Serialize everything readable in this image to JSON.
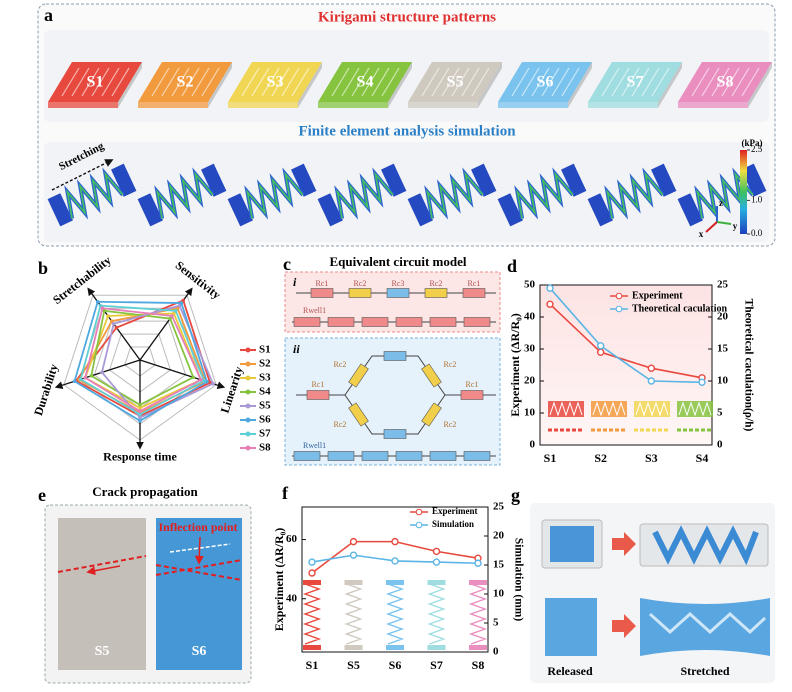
{
  "panel_a": {
    "label": "a",
    "title": "Kirigami structure patterns",
    "patterns": [
      {
        "label": "S1",
        "color": "#e8493f"
      },
      {
        "label": "S2",
        "color": "#f29a3e"
      },
      {
        "label": "S3",
        "color": "#f1d654"
      },
      {
        "label": "S4",
        "color": "#86c440"
      },
      {
        "label": "S5",
        "color": "#cfc9c0"
      },
      {
        "label": "S6",
        "color": "#79c3ee"
      },
      {
        "label": "S7",
        "color": "#9fdde0"
      },
      {
        "label": "S8",
        "color": "#ea8ec0"
      }
    ],
    "subtitle": "Finite element analysis simulation",
    "stretch_label": "Stretching",
    "colorbar": {
      "unit": "(kPa)",
      "lim": [
        0,
        2.5
      ],
      "ticks": [
        2.5,
        {
          "value": 1,
          "label": "1.0"
        },
        {
          "value": 0,
          "label": "0.0"
        }
      ]
    },
    "axes": [
      "z",
      "y",
      "x"
    ]
  },
  "panel_c": {
    "label": "c",
    "title": "Equivalent circuit model",
    "parts": [
      {
        "label": "i",
        "resistors": [
          "Rc1",
          "Rc2",
          "Rc3",
          "Rc2",
          "Rc1"
        ],
        "well": "Rwell1"
      },
      {
        "label": "ii",
        "resistors": [
          "Rc1",
          "Rc2",
          "Rc2",
          "Rc2",
          "Rc2",
          "Rc1"
        ],
        "well": "Rwell1"
      }
    ]
  },
  "panel_e": {
    "label": "e",
    "title": "Crack propagation",
    "annotation": "Inflection point",
    "samples": [
      "S5",
      "S6"
    ]
  },
  "panel_g": {
    "label": "g",
    "states": [
      "Released",
      "Stretched"
    ]
  },
  "chart_data": [
    {
      "type": "radar",
      "label": "b",
      "categories": [
        "Stretchability",
        "Sensitivity",
        "Linearity",
        "Response time",
        "Durability"
      ],
      "rlim": [
        0,
        5
      ],
      "rticks": [
        1,
        2,
        3,
        4,
        5
      ],
      "series": [
        {
          "name": "S1",
          "color": "#e8493f",
          "values": [
            2.5,
            4.6,
            4.6,
            3.5,
            4.2
          ]
        },
        {
          "name": "S2",
          "color": "#f29a3e",
          "values": [
            3.0,
            4.0,
            4.3,
            3.3,
            4.0
          ]
        },
        {
          "name": "S3",
          "color": "#e8c93a",
          "values": [
            3.4,
            3.6,
            4.0,
            3.0,
            3.6
          ]
        },
        {
          "name": "S4",
          "color": "#86c440",
          "values": [
            3.8,
            3.2,
            3.5,
            2.8,
            3.2
          ]
        },
        {
          "name": "S5",
          "color": "#a99ad6",
          "values": [
            2.8,
            4.2,
            4.8,
            3.6,
            2.5
          ]
        },
        {
          "name": "S6",
          "color": "#4fa8e0",
          "values": [
            4.5,
            4.4,
            4.4,
            3.8,
            4.3
          ]
        },
        {
          "name": "S7",
          "color": "#5fcfd4",
          "values": [
            4.2,
            3.8,
            4.2,
            3.4,
            3.9
          ]
        },
        {
          "name": "S8",
          "color": "#e67fb8",
          "values": [
            4.0,
            3.4,
            4.0,
            3.2,
            3.6
          ]
        }
      ]
    },
    {
      "type": "line",
      "label": "d",
      "categories": [
        "S1",
        "S2",
        "S3",
        "S4"
      ],
      "ylabel": "Experiment (ΔR/R₀)",
      "y2label": "Theoretical caculation(ρ/h)",
      "ylim": [
        0,
        50
      ],
      "yticks": [
        0,
        10,
        20,
        30,
        40,
        50
      ],
      "y2lim": [
        0,
        25
      ],
      "y2ticks": [
        0,
        5,
        10,
        15,
        20,
        25
      ],
      "legend": "upper right",
      "series": [
        {
          "name": "Experiment",
          "color": "#e8493f",
          "values": [
            44,
            29,
            24,
            21
          ]
        },
        {
          "name": "Theoretical caculation",
          "color": "#5ab4e5",
          "axis": "y2",
          "values": [
            24.5,
            15.5,
            10,
            9.8
          ]
        }
      ]
    },
    {
      "type": "line",
      "label": "f",
      "categories": [
        "S1",
        "S5",
        "S6",
        "S7",
        "S8"
      ],
      "ylabel": "Experiment (ΔR/R₀)",
      "y2label": "Simulation (mm)",
      "ylim": [
        22,
        71
      ],
      "yticks": [
        40,
        60
      ],
      "y2lim": [
        0,
        25
      ],
      "y2ticks": [
        0,
        5,
        10,
        15,
        20,
        25
      ],
      "legend": "upper right",
      "series": [
        {
          "name": "Experiment",
          "color": "#e8493f",
          "values": [
            48.7,
            59.3,
            59.3,
            56,
            53.7
          ]
        },
        {
          "name": "Simulation",
          "color": "#5ab4e5",
          "axis": "y2",
          "values": [
            15.5,
            16.7,
            15.7,
            15.5,
            15.3
          ]
        }
      ]
    }
  ]
}
